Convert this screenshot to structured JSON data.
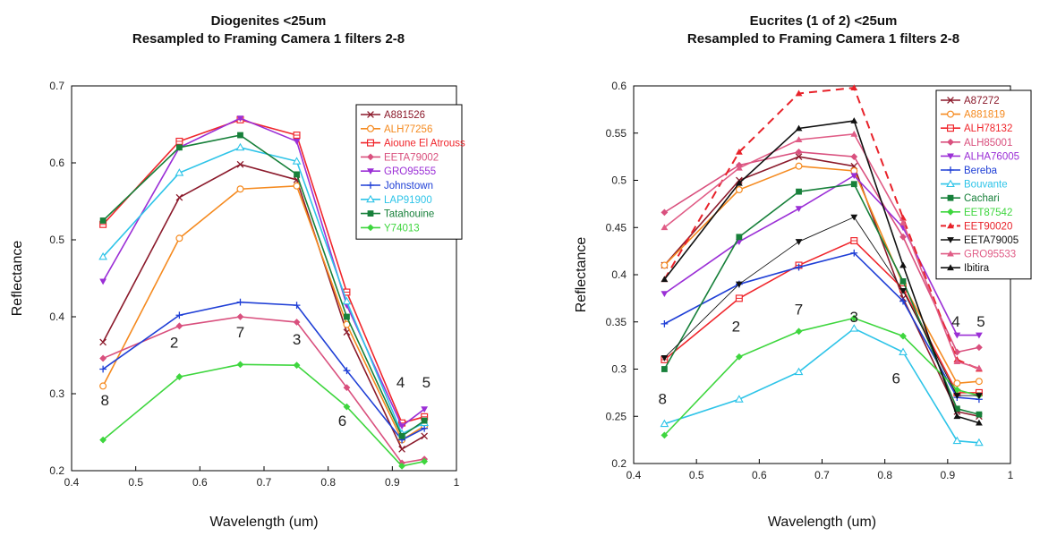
{
  "chart_data": [
    {
      "type": "line",
      "title_lines": [
        "Diogenites <25um",
        "Resampled to Framing Camera 1 filters 2-8"
      ],
      "xlabel": "Wavelength (um)",
      "ylabel": "Reflectance",
      "xlim": [
        0.4,
        1
      ],
      "ylim": [
        0.2,
        0.7
      ],
      "xticks": [
        "0.4",
        "0.5",
        "0.6",
        "0.7",
        "0.8",
        "0.9",
        "1"
      ],
      "yticks": [
        "0.2",
        "0.3",
        "0.4",
        "0.5",
        "0.6",
        "0.7"
      ],
      "legend_position": "top-right",
      "x": [
        0.449,
        0.568,
        0.663,
        0.751,
        0.829,
        0.915,
        0.95
      ],
      "filter_labels": [
        {
          "text": "8",
          "x": 0.452,
          "y": 0.285
        },
        {
          "text": "2",
          "x": 0.56,
          "y": 0.36
        },
        {
          "text": "7",
          "x": 0.663,
          "y": 0.373
        },
        {
          "text": "3",
          "x": 0.751,
          "y": 0.364
        },
        {
          "text": "6",
          "x": 0.822,
          "y": 0.258
        },
        {
          "text": "4",
          "x": 0.913,
          "y": 0.308
        },
        {
          "text": "5",
          "x": 0.953,
          "y": 0.308
        }
      ],
      "series": [
        {
          "name": "A881526",
          "color": "#8b1a2b",
          "marker": "x",
          "values": [
            0.367,
            0.555,
            0.598,
            0.578,
            0.38,
            0.228,
            0.245
          ]
        },
        {
          "name": "ALH77256",
          "color": "#f58a1f",
          "marker": "circle-open",
          "values": [
            0.31,
            0.502,
            0.566,
            0.57,
            0.39,
            0.24,
            0.258
          ]
        },
        {
          "name": "Aioune El Atrouss",
          "color": "#f0262c",
          "marker": "square-open",
          "values": [
            0.52,
            0.628,
            0.656,
            0.636,
            0.432,
            0.262,
            0.27
          ]
        },
        {
          "name": "EETA79002",
          "color": "#d9507e",
          "marker": "diamond",
          "values": [
            0.346,
            0.388,
            0.4,
            0.393,
            0.308,
            0.21,
            0.215
          ]
        },
        {
          "name": "GRO95555",
          "color": "#9b2fd6",
          "marker": "triangle-down",
          "values": [
            0.446,
            0.62,
            0.658,
            0.628,
            0.415,
            0.258,
            0.28
          ]
        },
        {
          "name": "Johnstown",
          "color": "#1f3fd6",
          "marker": "plus",
          "values": [
            0.332,
            0.402,
            0.419,
            0.415,
            0.33,
            0.24,
            0.255
          ]
        },
        {
          "name": "LAP91900",
          "color": "#2ec4e8",
          "marker": "triangle-open",
          "values": [
            0.478,
            0.587,
            0.62,
            0.602,
            0.42,
            0.248,
            0.262
          ]
        },
        {
          "name": "Tatahouine",
          "color": "#17803a",
          "marker": "square",
          "values": [
            0.525,
            0.62,
            0.636,
            0.585,
            0.4,
            0.245,
            0.265
          ]
        },
        {
          "name": "Y74013",
          "color": "#3ed63e",
          "marker": "diamond",
          "values": [
            0.24,
            0.322,
            0.338,
            0.337,
            0.283,
            0.206,
            0.212
          ]
        }
      ]
    },
    {
      "type": "line",
      "title_lines": [
        "Eucrites (1 of 2) <25um",
        "Resampled to Framing Camera 1 filters 2-8"
      ],
      "xlabel": "Wavelength (um)",
      "ylabel": "Reflectance",
      "xlim": [
        0.4,
        1
      ],
      "ylim": [
        0.2,
        0.6
      ],
      "xticks": [
        "0.4",
        "0.5",
        "0.6",
        "0.7",
        "0.8",
        "0.9",
        "1"
      ],
      "yticks": [
        "0.2",
        "0.25",
        "0.3",
        "0.35",
        "0.4",
        "0.45",
        "0.5",
        "0.55",
        "0.6"
      ],
      "legend_position": "top-right",
      "x": [
        0.449,
        0.568,
        0.663,
        0.751,
        0.829,
        0.915,
        0.95
      ],
      "filter_labels": [
        {
          "text": "8",
          "x": 0.446,
          "y": 0.263
        },
        {
          "text": "2",
          "x": 0.563,
          "y": 0.34
        },
        {
          "text": "7",
          "x": 0.663,
          "y": 0.358
        },
        {
          "text": "3",
          "x": 0.751,
          "y": 0.35
        },
        {
          "text": "6",
          "x": 0.818,
          "y": 0.285
        },
        {
          "text": "4",
          "x": 0.913,
          "y": 0.345
        },
        {
          "text": "5",
          "x": 0.953,
          "y": 0.345
        }
      ],
      "series": [
        {
          "name": "A87272",
          "color": "#8b1a2b",
          "marker": "x",
          "values": [
            0.41,
            0.5,
            0.525,
            0.515,
            0.375,
            0.255,
            0.25
          ]
        },
        {
          "name": "A881819",
          "color": "#f58a1f",
          "marker": "circle-open",
          "values": [
            0.41,
            0.49,
            0.515,
            0.51,
            0.39,
            0.285,
            0.287
          ]
        },
        {
          "name": "ALH78132",
          "color": "#f0262c",
          "marker": "square-open",
          "values": [
            0.31,
            0.375,
            0.41,
            0.436,
            0.385,
            0.275,
            0.275
          ]
        },
        {
          "name": "ALH85001",
          "color": "#d9507e",
          "marker": "diamond",
          "values": [
            0.466,
            0.516,
            0.53,
            0.525,
            0.44,
            0.318,
            0.323
          ]
        },
        {
          "name": "ALHA76005",
          "color": "#9b2fd6",
          "marker": "triangle-down",
          "values": [
            0.38,
            0.435,
            0.47,
            0.505,
            0.45,
            0.336,
            0.336
          ]
        },
        {
          "name": "Bereba",
          "color": "#1f3fd6",
          "marker": "plus",
          "values": [
            0.348,
            0.39,
            0.408,
            0.423,
            0.372,
            0.27,
            0.268
          ]
        },
        {
          "name": "Bouvante",
          "color": "#2ec4e8",
          "marker": "triangle-open",
          "values": [
            0.242,
            0.268,
            0.297,
            0.343,
            0.318,
            0.224,
            0.222
          ]
        },
        {
          "name": "Cachari",
          "color": "#17803a",
          "marker": "square",
          "values": [
            0.3,
            0.44,
            0.488,
            0.496,
            0.393,
            0.258,
            0.252
          ]
        },
        {
          "name": "EET87542",
          "color": "#3ed63e",
          "marker": "diamond",
          "values": [
            0.23,
            0.313,
            0.34,
            0.354,
            0.335,
            0.278,
            0.272
          ]
        },
        {
          "name": "EET90020",
          "color": "#e8222a",
          "marker": "triangle",
          "dashed": true,
          "values": [
            0.395,
            0.53,
            0.592,
            0.598,
            0.46,
            0.31,
            0.3
          ]
        },
        {
          "name": "EETA79005",
          "color": "#111111",
          "marker": "triangle-down",
          "values": [
            0.312,
            0.39,
            0.435,
            0.461,
            0.383,
            0.272,
            0.272
          ]
        },
        {
          "name": "GRO95533",
          "color": "#e05c86",
          "marker": "triangle",
          "values": [
            0.45,
            0.513,
            0.543,
            0.549,
            0.455,
            0.308,
            0.301
          ]
        },
        {
          "name": "Ibitira",
          "color": "#111111",
          "marker": "triangle",
          "values": [
            0.395,
            0.497,
            0.555,
            0.563,
            0.41,
            0.25,
            0.243
          ]
        }
      ]
    }
  ]
}
